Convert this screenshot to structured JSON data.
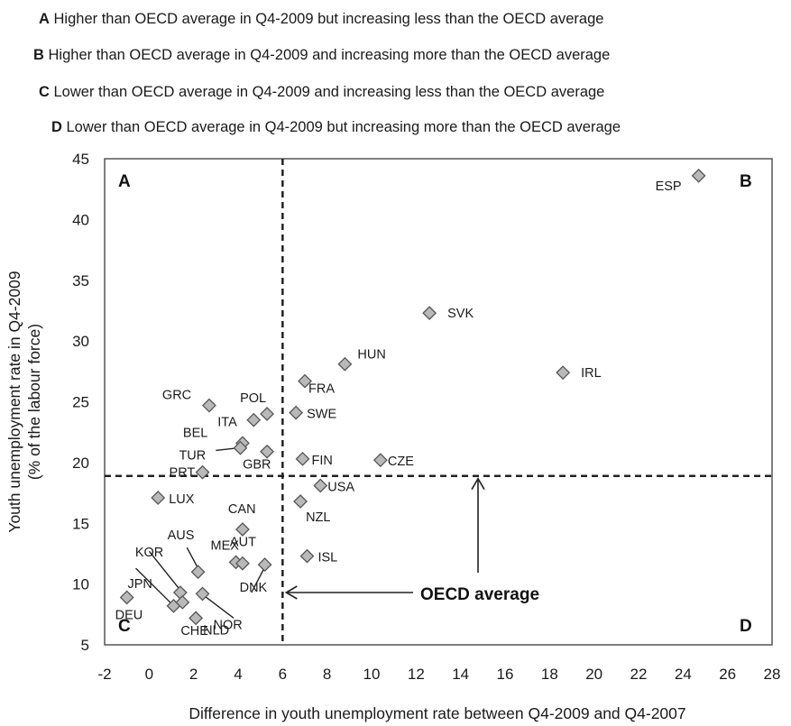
{
  "legend": [
    {
      "key": "A",
      "text": " Higher than OECD average in Q4-2009 but increasing less than the OECD average"
    },
    {
      "key": "B",
      "text": " Higher than OECD average in Q4-2009 and increasing more than the OECD average"
    },
    {
      "key": "C",
      "text": " Lower than OECD average in Q4-2009 and increasing less than the OECD average"
    },
    {
      "key": "D",
      "text": " Lower than OECD average in Q4-2009 but  increasing more than the OECD average"
    }
  ],
  "chart_data": {
    "type": "scatter",
    "xlabel": "Difference in youth unemployment rate between Q4-2009 and Q4-2007",
    "ylabel_line1": "Youth unemployment rate in Q4-2009",
    "ylabel_line2": "(% of the labour force)",
    "xlim": [
      -2,
      28
    ],
    "ylim": [
      5,
      45
    ],
    "xticks": [
      -2,
      0,
      2,
      4,
      6,
      8,
      10,
      12,
      14,
      16,
      18,
      20,
      22,
      24,
      26,
      28
    ],
    "yticks": [
      5,
      10,
      15,
      20,
      25,
      30,
      35,
      40,
      45
    ],
    "oecd_average": {
      "x": 6.0,
      "y": 18.9,
      "label": "OECD average"
    },
    "quadrant_labels": [
      "A",
      "B",
      "C",
      "D"
    ],
    "marker_color": "#b9b9b9",
    "marker_edge": "#555555",
    "points": [
      {
        "label": "ESP",
        "x": 24.7,
        "y": 43.6
      },
      {
        "label": "SVK",
        "x": 12.6,
        "y": 32.3
      },
      {
        "label": "IRL",
        "x": 18.6,
        "y": 27.4
      },
      {
        "label": "HUN",
        "x": 8.8,
        "y": 28.1
      },
      {
        "label": "FRA",
        "x": 7.0,
        "y": 26.7
      },
      {
        "label": "SWE",
        "x": 6.6,
        "y": 24.1
      },
      {
        "label": "POL",
        "x": 5.3,
        "y": 24.0
      },
      {
        "label": "ITA",
        "x": 4.7,
        "y": 23.5
      },
      {
        "label": "GRC",
        "x": 2.7,
        "y": 24.7
      },
      {
        "label": "BEL",
        "x": 4.2,
        "y": 21.6
      },
      {
        "label": "TUR",
        "x": 4.1,
        "y": 21.2
      },
      {
        "label": "GBR",
        "x": 5.3,
        "y": 20.9
      },
      {
        "label": "PRT",
        "x": 2.4,
        "y": 19.2
      },
      {
        "label": "FIN",
        "x": 6.9,
        "y": 20.3
      },
      {
        "label": "CZE",
        "x": 10.4,
        "y": 20.2
      },
      {
        "label": "USA",
        "x": 7.7,
        "y": 18.1
      },
      {
        "label": "NZL",
        "x": 6.8,
        "y": 16.8
      },
      {
        "label": "LUX",
        "x": 0.4,
        "y": 17.1
      },
      {
        "label": "CAN",
        "x": 4.2,
        "y": 14.5
      },
      {
        "label": "AUS",
        "x": 2.2,
        "y": 11.0
      },
      {
        "label": "MEX",
        "x": 3.9,
        "y": 11.8
      },
      {
        "label": "AUT",
        "x": 4.2,
        "y": 11.7
      },
      {
        "label": "DNK",
        "x": 5.2,
        "y": 11.6
      },
      {
        "label": "ISL",
        "x": 7.1,
        "y": 12.3
      },
      {
        "label": "KOR",
        "x": 1.4,
        "y": 9.3
      },
      {
        "label": "NOR",
        "x": 2.4,
        "y": 9.2
      },
      {
        "label": "JPN",
        "x": 1.1,
        "y": 8.2
      },
      {
        "label": "DEU",
        "x": -1.0,
        "y": 8.9
      },
      {
        "label": "CHE",
        "x": 1.5,
        "y": 8.5
      },
      {
        "label": "NLD",
        "x": 2.1,
        "y": 7.2
      }
    ]
  }
}
